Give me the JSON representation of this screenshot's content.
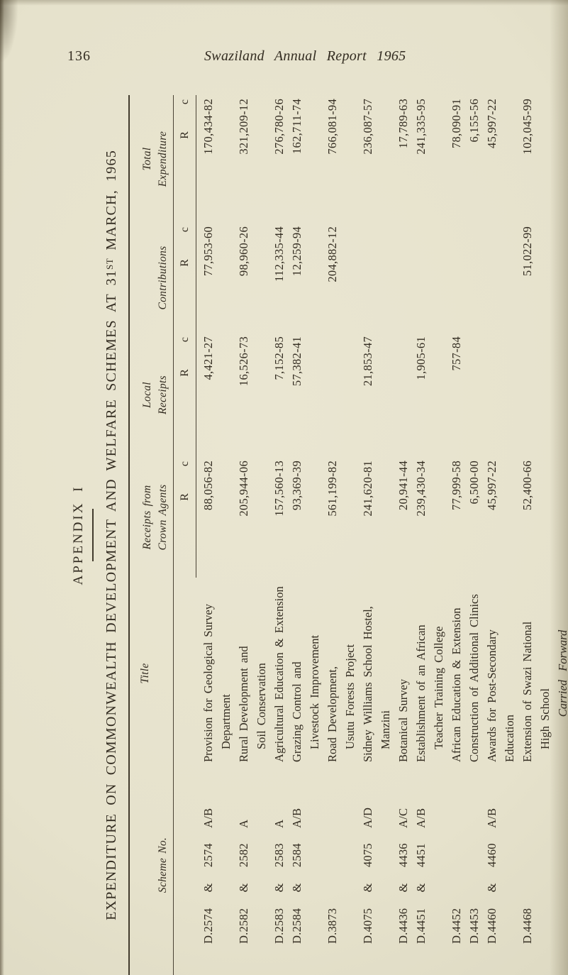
{
  "page": {
    "number": "136",
    "running_title": "Swaziland Annual Report 1965"
  },
  "appendix": {
    "label": "APPENDIX I",
    "title_main": "EXPENDITURE ON COMMONWEALTH DEVELOPMENT AND WELFARE SCHEMES AT 31",
    "title_ordinal": "ST",
    "title_rest": " MARCH, 1965"
  },
  "table": {
    "headers": {
      "scheme": "Scheme No.",
      "title": "Title",
      "receipts_line1": "Receipts from",
      "receipts_line2": "Crown Agents",
      "local_line1": "Local",
      "local_line2": "Receipts",
      "contributions": "Contributions",
      "total_line1": "Total",
      "total_line2": "Expenditure",
      "rand_symbol": "R",
      "cents_symbol": "c"
    },
    "rows": [
      {
        "scheme": "D.2574 & 2574 A/B",
        "title1": "Provision for Geological Survey",
        "title2": "Department",
        "receipts": "88,056-82",
        "local": "4,421-27",
        "contributions": "77,953-60",
        "total": "170,434-82"
      },
      {
        "scheme": "D.2582 & 2582 A",
        "title1": "Rural Development and",
        "title2": "Soil Conservation",
        "receipts": "205,944-06",
        "local": "16,526-73",
        "contributions": "98,960-26",
        "total": "321,209-12"
      },
      {
        "scheme": "D.2583 & 2583 A",
        "title1": "Agricultural Education & Extension",
        "title2": "",
        "receipts": "157,560-13",
        "local": "7,152-85",
        "contributions": "112,335-44",
        "total": "276,780-26"
      },
      {
        "scheme": "D.2584 & 2584 A/B",
        "title1": "Grazing Control and",
        "title2": "Livestock Improvement",
        "receipts": "93,369-39",
        "local": "57,382-41",
        "contributions": "12,259-94",
        "total": "162,711-74"
      },
      {
        "scheme": "D.3873",
        "title1": "Road Development,",
        "title2": "Usutu Forests Project",
        "receipts": "561,199-82",
        "local": "",
        "contributions": "204,882-12",
        "total": "766,081-94"
      },
      {
        "scheme": "D.4075 & 4075 A/D",
        "title1": "Sidney Williams School Hostel,",
        "title2": "Manzini",
        "receipts": "241,620-81",
        "local": "21,853-47",
        "contributions": "",
        "total": "236,087-57"
      },
      {
        "scheme": "D.4436 & 4436 A/C",
        "title1": "Botanical Survey",
        "title2": "",
        "receipts": "20,941-44",
        "local": "",
        "contributions": "",
        "total": "17,789-63"
      },
      {
        "scheme": "D.4451 & 4451 A/B",
        "title1": "Establishment of an African",
        "title2": "Teacher Training College",
        "receipts": "239,430-34",
        "local": "1,905-61",
        "contributions": "",
        "total": "241,335-95"
      },
      {
        "scheme": "D.4452",
        "title1": "African Education & Extension",
        "title2": "",
        "receipts": "77,999-58",
        "local": "757-84",
        "contributions": "",
        "total": "78,090-91"
      },
      {
        "scheme": "D.4453",
        "title1": "Construction of Additional Clinics",
        "title2": "",
        "receipts": "6,500-00",
        "local": "",
        "contributions": "",
        "total": "6,155-56"
      },
      {
        "scheme": "D.4460 & 4460 A/B",
        "title1": "Awards for Post-Secondary Education",
        "title2": "",
        "receipts": "45,997-22",
        "local": "",
        "contributions": "",
        "total": "45,997-22"
      },
      {
        "scheme": "D.4468",
        "title1": "Extension of Swazi National",
        "title2": "High School",
        "receipts": "52,400-66",
        "local": "",
        "contributions": "51,022-99",
        "total": "102,045-99"
      }
    ],
    "carried_forward": "Carried Forward"
  }
}
